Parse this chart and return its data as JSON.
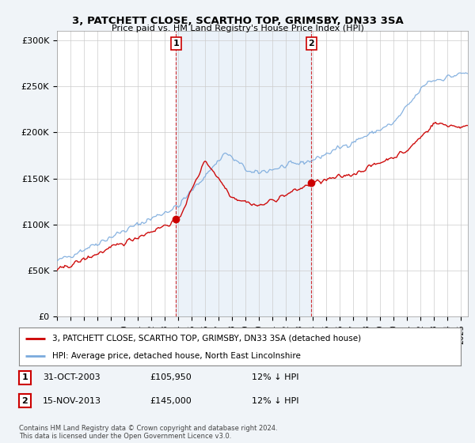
{
  "title1": "3, PATCHETT CLOSE, SCARTHO TOP, GRIMSBY, DN33 3SA",
  "title2": "Price paid vs. HM Land Registry's House Price Index (HPI)",
  "ylabel_ticks": [
    "£0",
    "£50K",
    "£100K",
    "£150K",
    "£200K",
    "£250K",
    "£300K"
  ],
  "ytick_values": [
    0,
    50000,
    100000,
    150000,
    200000,
    250000,
    300000
  ],
  "ylim": [
    0,
    310000
  ],
  "xlim_start": 1995.0,
  "xlim_end": 2025.5,
  "red_color": "#cc0000",
  "blue_color": "#7aaadd",
  "shade_color": "#ddeeff",
  "marker1_x": 2003.83,
  "marker1_y": 105950,
  "marker2_x": 2013.88,
  "marker2_y": 145000,
  "vline1_x": 2003.83,
  "vline2_x": 2013.88,
  "legend_line1": "3, PATCHETT CLOSE, SCARTHO TOP, GRIMSBY, DN33 3SA (detached house)",
  "legend_line2": "HPI: Average price, detached house, North East Lincolnshire",
  "table_row1": [
    "1",
    "31-OCT-2003",
    "£105,950",
    "12% ↓ HPI"
  ],
  "table_row2": [
    "2",
    "15-NOV-2013",
    "£145,000",
    "12% ↓ HPI"
  ],
  "footer1": "Contains HM Land Registry data © Crown copyright and database right 2024.",
  "footer2": "This data is licensed under the Open Government Licence v3.0.",
  "background_color": "#f0f4f8",
  "plot_bg_color": "#ffffff"
}
